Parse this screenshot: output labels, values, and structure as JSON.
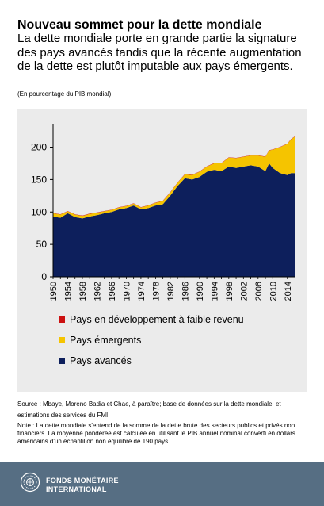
{
  "header": {
    "title": "Nouveau sommet pour la dette mondiale",
    "subtitle": "La dette mondiale porte en grande partie la signature des pays avancés tandis que la récente augmentation de la dette est plutôt imputable aux pays émergents.",
    "unit": "(En pourcentage du PIB mondial)"
  },
  "chart_data": {
    "type": "area",
    "stacked": true,
    "x": [
      1950,
      1952,
      1954,
      1956,
      1958,
      1960,
      1962,
      1964,
      1966,
      1968,
      1970,
      1972,
      1974,
      1976,
      1978,
      1980,
      1982,
      1984,
      1986,
      1988,
      1990,
      1992,
      1994,
      1996,
      1998,
      2000,
      2002,
      2004,
      2006,
      2008,
      2009,
      2010,
      2012,
      2014,
      2015,
      2016
    ],
    "series": [
      {
        "name": "Pays avancés",
        "color": "#0d1f5c",
        "values": [
          93,
          91,
          98,
          92,
          90,
          93,
          95,
          98,
          100,
          104,
          106,
          110,
          104,
          106,
          110,
          112,
          125,
          140,
          152,
          150,
          154,
          162,
          165,
          163,
          170,
          168,
          170,
          172,
          170,
          163,
          175,
          168,
          160,
          157,
          160,
          160
        ]
      },
      {
        "name": "Pays émergents",
        "color": "#f5c400",
        "values": [
          5,
          5,
          3,
          4,
          4,
          4,
          4,
          3,
          3,
          3,
          3,
          3,
          3,
          4,
          4,
          5,
          5,
          5,
          6,
          7,
          8,
          8,
          10,
          12,
          14,
          15,
          15,
          15,
          17,
          22,
          20,
          28,
          40,
          48,
          52,
          56
        ]
      },
      {
        "name": "Pays en développement à faible revenu",
        "color": "#cc1111",
        "values": [
          0.5,
          0.5,
          0.5,
          0.5,
          0.5,
          0.5,
          0.5,
          0.5,
          0.5,
          0.5,
          0.5,
          0.5,
          0.5,
          0.5,
          0.5,
          0.5,
          0.5,
          0.5,
          0.5,
          0.5,
          0.5,
          0.5,
          0.5,
          0.5,
          0.5,
          0.5,
          0.5,
          0.5,
          0.5,
          0.5,
          0.5,
          0.5,
          0.5,
          0.5,
          0.5,
          0.5
        ]
      }
    ],
    "xticks": [
      "1950",
      "1954",
      "1958",
      "1962",
      "1966",
      "1970",
      "1974",
      "1978",
      "1982",
      "1986",
      "1990",
      "1994",
      "1998",
      "2002",
      "2006",
      "2010",
      "2014"
    ],
    "yticks": [
      "0",
      "50",
      "100",
      "150",
      "200"
    ],
    "xlim": [
      1950,
      2016
    ],
    "ylim": [
      0,
      230
    ],
    "legend": [
      {
        "label": "Pays en développement à faible revenu",
        "color": "#cc1111"
      },
      {
        "label": "Pays émergents",
        "color": "#f5c400"
      },
      {
        "label": "Pays avancés",
        "color": "#0d1f5c"
      }
    ],
    "legend_position": "bottom-left",
    "grid": false
  },
  "source": "Source : Mbaye, Moreno Badia et Chae, à paraître; base de données sur la dette mondiale; et estimations des services du FMI.",
  "note": "Note : La dette mondiale s'entend de la somme de la dette brute des secteurs publics et privés non financiers. La moyenne pondérée est calculée en utilisant le PIB annuel nominal converti en dollars américains d'un échantillon non équilibré de 190 pays.",
  "footer": {
    "org_line1": "FONDS MONÉTAIRE",
    "org_line2": "INTERNATIONAL"
  }
}
